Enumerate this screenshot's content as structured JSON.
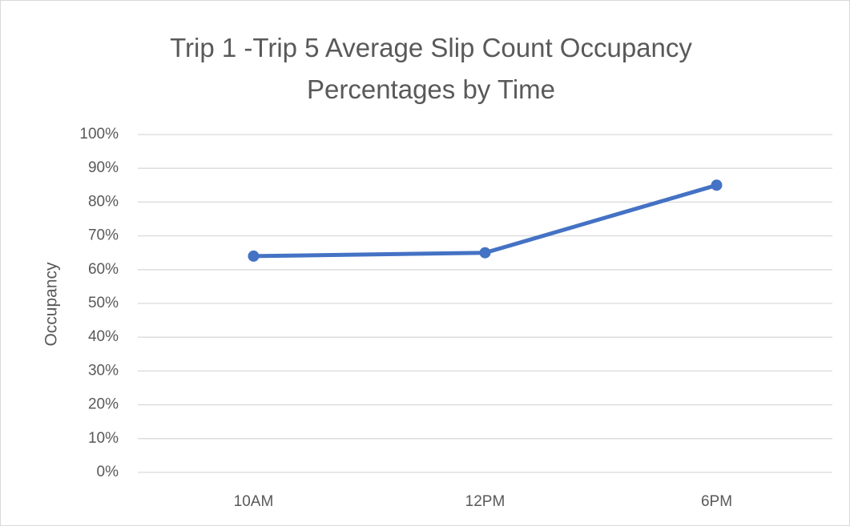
{
  "chart_data": {
    "type": "line",
    "title": "Trip 1 -Trip 5 Average Slip Count Occupancy Percentages by Time",
    "y_label": "Occupancy",
    "categories": [
      "10AM",
      "12PM",
      "6PM"
    ],
    "series": [
      {
        "name": "Occupancy",
        "color": "#4472c4",
        "values": [
          64,
          65,
          85
        ]
      }
    ],
    "ylim": [
      0,
      100
    ],
    "yticks": [
      {
        "value": 0,
        "label": "0%"
      },
      {
        "value": 10,
        "label": "10%"
      },
      {
        "value": 20,
        "label": "20%"
      },
      {
        "value": 30,
        "label": "30%"
      },
      {
        "value": 40,
        "label": "40%"
      },
      {
        "value": 50,
        "label": "50%"
      },
      {
        "value": 60,
        "label": "60%"
      },
      {
        "value": 70,
        "label": "70%"
      },
      {
        "value": 80,
        "label": "80%"
      },
      {
        "value": 90,
        "label": "90%"
      },
      {
        "value": 100,
        "label": "100%"
      }
    ],
    "grid": true
  }
}
